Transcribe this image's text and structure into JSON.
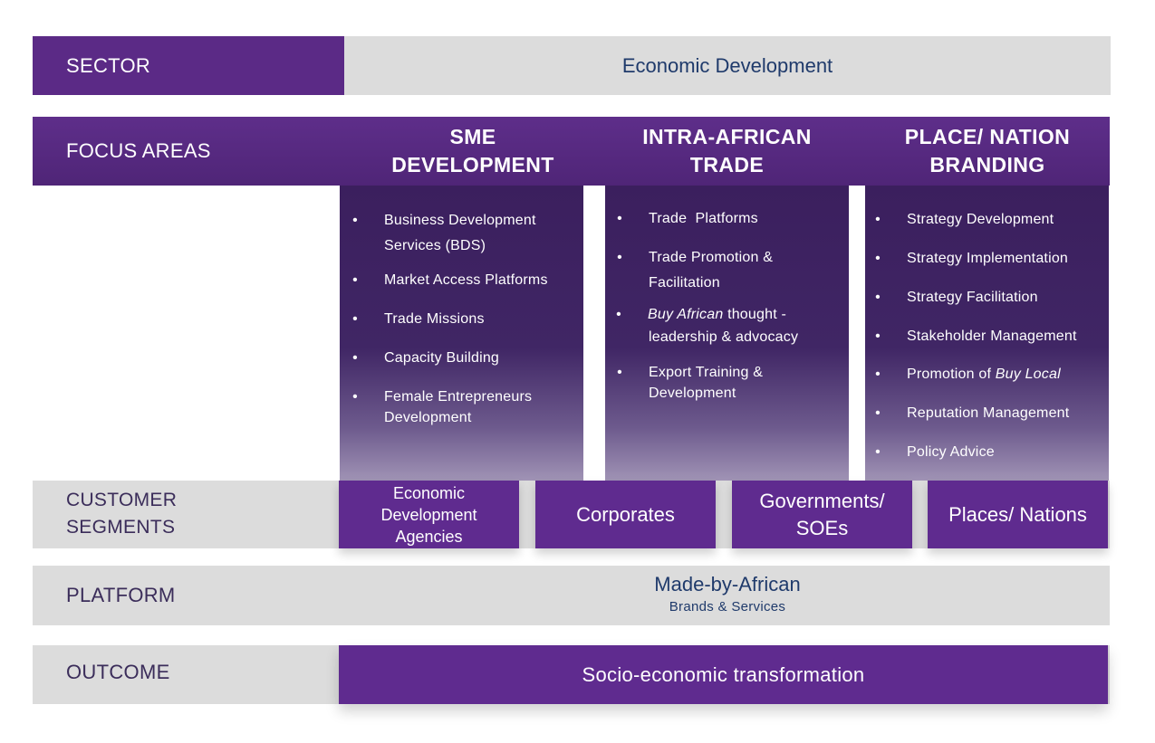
{
  "sector": {
    "label": "SECTOR",
    "value": "Economic Development"
  },
  "focus_areas": {
    "label": "FOCUS AREAS",
    "columns": [
      {
        "heading_line1": "SME",
        "heading_line2": "DEVELOPMENT",
        "items": [
          {
            "line1": "Business Development",
            "line2": "Services (BDS)"
          },
          {
            "line1": "Market Access Platforms"
          },
          {
            "line1": "Trade Missions"
          },
          {
            "line1": "Capacity Building"
          },
          {
            "line1": "Female Entrepreneurs",
            "line2": "Development"
          }
        ]
      },
      {
        "heading_line1": "INTRA-AFRICAN",
        "heading_line2": "TRADE",
        "items": [
          {
            "line1": "Trade  Platforms"
          },
          {
            "line1": "Trade Promotion &",
            "line2": "Facilitation"
          },
          {
            "italic": "Buy African",
            "line1_rest": " thought -",
            "line2": "leadership & advocacy"
          },
          {
            "line1": "Export Training &",
            "line2": "Development"
          }
        ]
      },
      {
        "heading_line1": "PLACE/ NATION",
        "heading_line2": "BRANDING",
        "items": [
          {
            "line1": "Strategy Development"
          },
          {
            "line1": "Strategy Implementation"
          },
          {
            "line1": "Strategy Facilitation"
          },
          {
            "line1": "Stakeholder Management"
          },
          {
            "prefix": "Promotion of ",
            "italic": "Buy Local"
          },
          {
            "line1": "Reputation Management"
          },
          {
            "line1": "Policy Advice"
          }
        ]
      }
    ]
  },
  "customer_segments": {
    "label_line1": "CUSTOMER",
    "label_line2": "SEGMENTS",
    "segments": [
      {
        "line1": "Economic",
        "line2": "Development",
        "line3": "Agencies"
      },
      {
        "line1": "Corporates"
      },
      {
        "line1": "Governments/",
        "line2": "SOEs"
      },
      {
        "line1": "Places/ Nations"
      }
    ]
  },
  "platform": {
    "label": "PLATFORM",
    "title": "Made-by-African",
    "subtitle": "Brands & Services"
  },
  "outcome": {
    "label": "OUTCOME",
    "value": "Socio-economic transformation"
  },
  "colors": {
    "purple": "#5f2b8f",
    "deep_purple": "#3b1f5e",
    "light_gray": "#dcdcdc",
    "navy_text": "#1f3a6b",
    "label_text": "#3b2d5a"
  }
}
